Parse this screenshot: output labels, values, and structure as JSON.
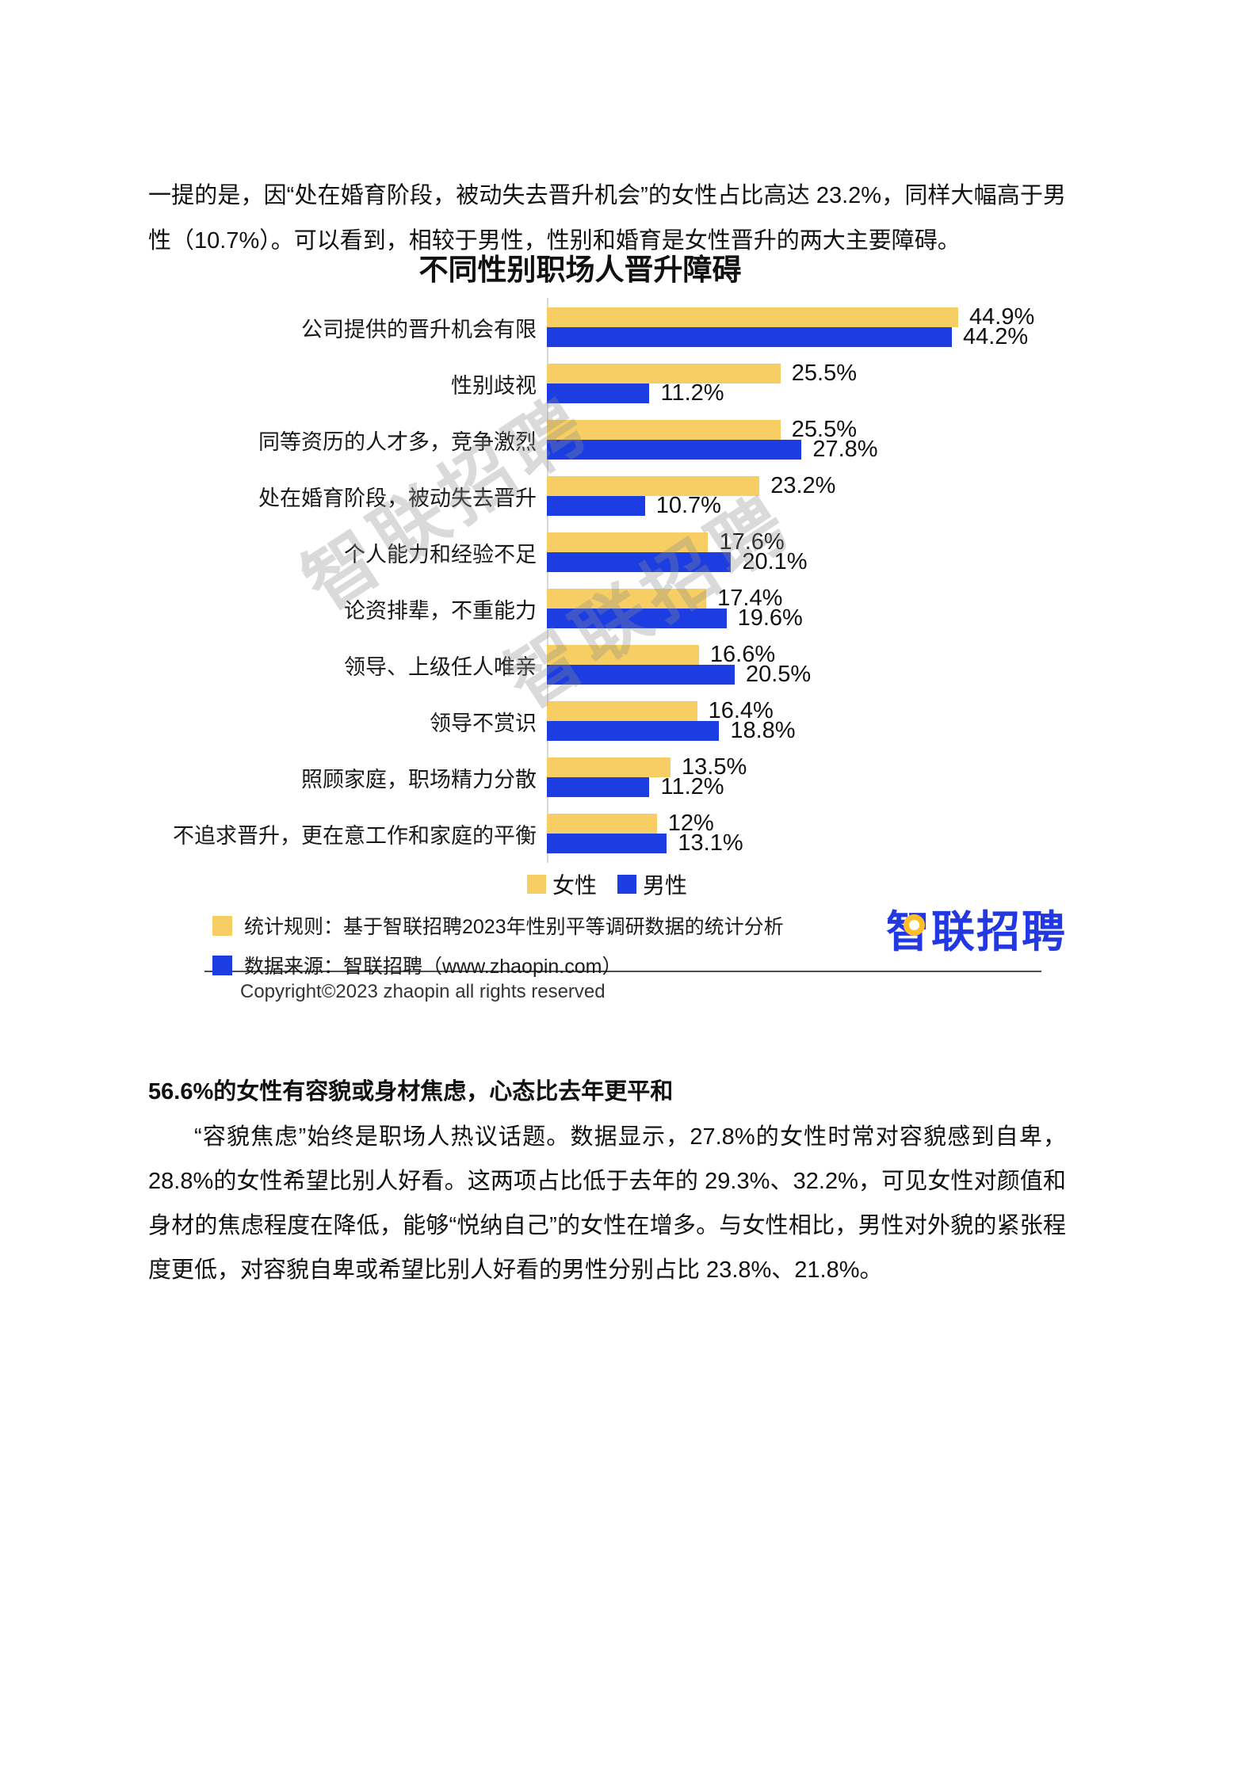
{
  "page": {
    "paragraph_top": "一提的是，因“处在婚育阶段，被动失去晋升机会”的女性占比高达 23.2%，同样大幅高于男性（10.7%）。可以看到，相较于男性，性别和婚育是女性晋升的两大主要障碍。",
    "watermark": "智联招聘",
    "copyright": "Copyright©2023 zhaopin all rights reserved",
    "section_heading": "56.6%的女性有容貌或身材焦虑，心态比去年更平和",
    "paragraph_bottom": "“容貌焦虑”始终是职场人热议话题。数据显示，27.8%的女性时常对容貌感到自卑，28.8%的女性希望比别人好看。这两项占比低于去年的 29.3%、32.2%，可见女性对颜值和身材的焦虑程度在降低，能够“悦纳自己”的女性在增多。与女性相比，男性对外貌的紧张程度更低，对容貌自卑或希望比别人好看的男性分别占比 23.8%、21.8%。"
  },
  "chart_data": {
    "type": "bar",
    "orientation": "horizontal",
    "title": "不同性别职场人晋升障碍",
    "categories": [
      "公司提供的晋升机会有限",
      "性别歧视",
      "同等资历的人才多，竞争激烈",
      "处在婚育阶段，被动失去晋升",
      "个人能力和经验不足",
      "论资排辈，不重能力",
      "领导、上级任人唯亲",
      "领导不赏识",
      "照顾家庭，职场精力分散",
      "不追求晋升，更在意工作和家庭的平衡"
    ],
    "series": [
      {
        "name": "女性",
        "color": "#F6CE63",
        "values": [
          44.9,
          25.5,
          25.5,
          23.2,
          17.6,
          17.4,
          16.6,
          16.4,
          13.5,
          12
        ],
        "labels": [
          "44.9%",
          "25.5%",
          "25.5%",
          "23.2%",
          "17.6%",
          "17.4%",
          "16.6%",
          "16.4%",
          "13.5%",
          "12%"
        ]
      },
      {
        "name": "男性",
        "color": "#1B3DE2",
        "values": [
          44.2,
          11.2,
          27.8,
          10.7,
          20.1,
          19.6,
          20.5,
          18.8,
          11.2,
          13.1
        ],
        "labels": [
          "44.2%",
          "11.2%",
          "27.8%",
          "10.7%",
          "20.1%",
          "19.6%",
          "20.5%",
          "18.8%",
          "11.2%",
          "13.1%"
        ]
      }
    ],
    "xlim": [
      0,
      50
    ],
    "grid": false,
    "legend_position": "bottom"
  },
  "notes": {
    "line1": "统计规则：基于智联招聘2023年性别平等调研数据的统计分析",
    "line2": "数据来源：智联招聘（www.zhaopin.com）"
  },
  "logo": {
    "text": "智联招聘"
  },
  "colors": {
    "female": "#F6CE63",
    "male": "#1B3DE2",
    "logo_blue": "#2138E3",
    "pin_yellow": "#FDBE2B",
    "axis": "#d9d9d9"
  }
}
